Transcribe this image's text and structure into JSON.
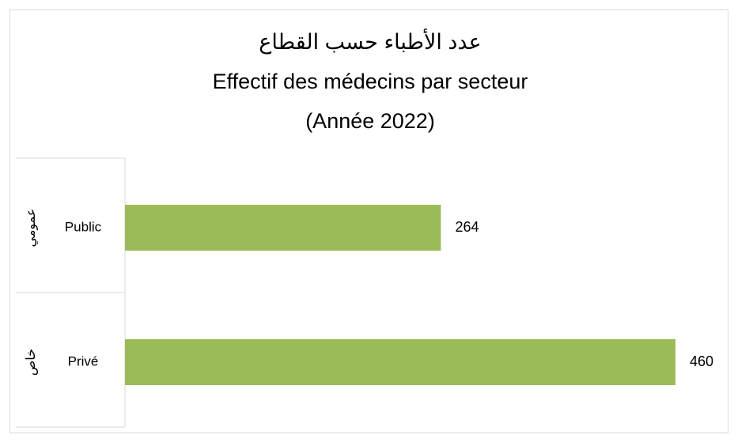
{
  "chart_data": {
    "type": "bar",
    "orientation": "horizontal",
    "title": [
      "عدد الأطباء حسب القطاع",
      "Effectif des médecins par secteur",
      "(Année 2022)"
    ],
    "categories": [
      "Public",
      "Privé"
    ],
    "categories_ar": [
      "عمومي",
      "خاص"
    ],
    "values": [
      264,
      460
    ],
    "color": "#9bbb59",
    "data_labels": true
  }
}
